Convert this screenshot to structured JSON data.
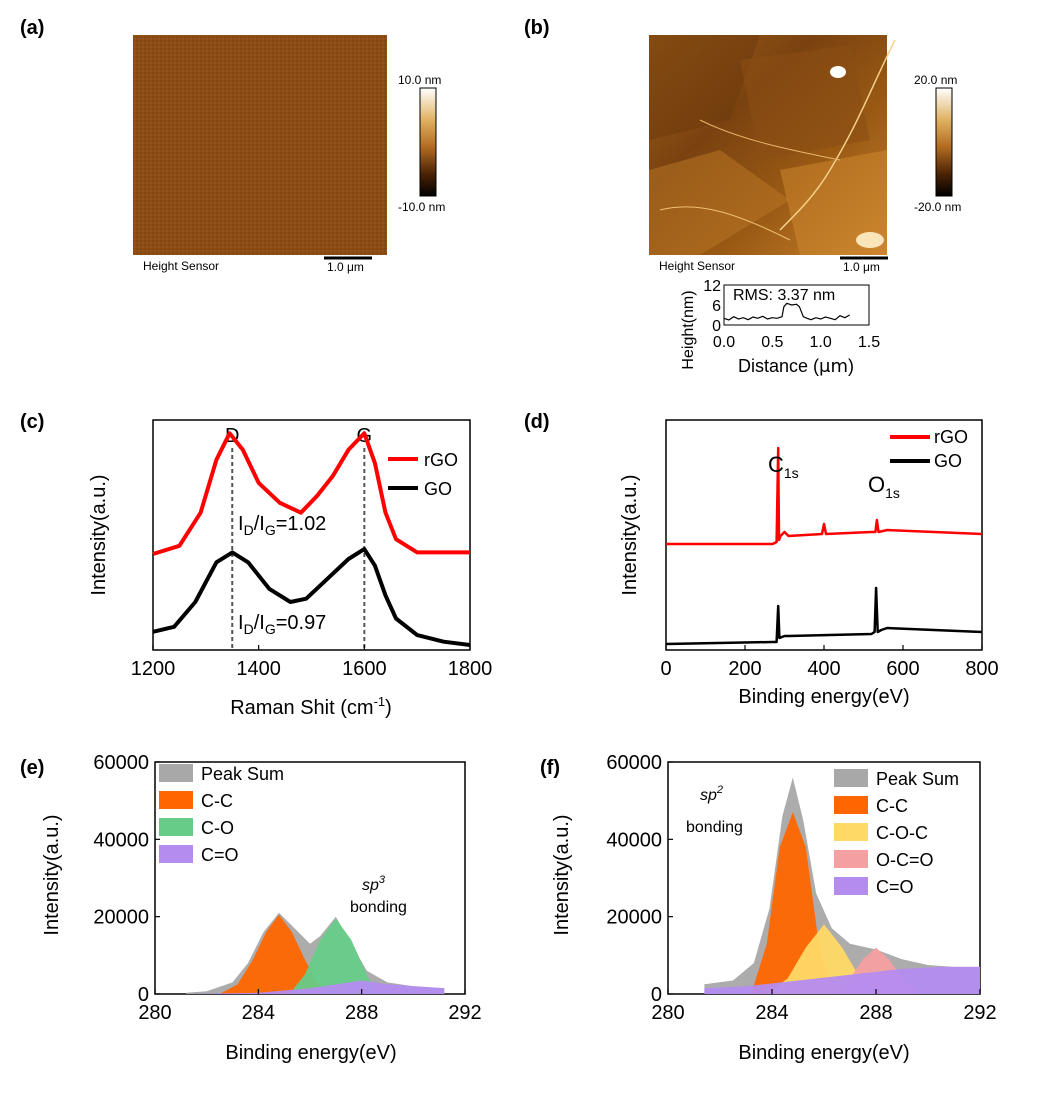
{
  "chart_data": [
    {
      "panel": "(a)",
      "type": "heatmap",
      "image": "afm-height-map-flat",
      "caption_label": "Height Sensor",
      "scale_bar": "1.0 μm",
      "colorbar": {
        "max_label": "10.0 nm",
        "min_label": "-10.0 nm"
      },
      "colors": {
        "base": "#8a4a14",
        "cmap": [
          "#000000",
          "#5a2a06",
          "#b06a20",
          "#e0b060",
          "#ffffff"
        ]
      }
    },
    {
      "panel": "(b)",
      "type": "heatmap",
      "image": "afm-height-map-rgo-flakes",
      "caption_label": "Height Sensor",
      "scale_bar": "1.0 μm",
      "colorbar": {
        "max_label": "20.0 nm",
        "min_label": "-20.0 nm"
      },
      "inset": {
        "type": "line",
        "annotation": "RMS: 3.37 nm",
        "xlabel_main": "Distance (",
        "xlabel_unit": "μm",
        "xlabel_close": ")",
        "ylabel": "Height(nm)",
        "xticks": [
          "0.0",
          "0.5",
          "1.0",
          "1.5"
        ],
        "yticks": [
          "0",
          "6",
          "12"
        ],
        "xlim": [
          0,
          1.5
        ],
        "ylim": [
          0,
          12
        ],
        "x": [
          0,
          0.05,
          0.1,
          0.15,
          0.2,
          0.25,
          0.3,
          0.35,
          0.4,
          0.45,
          0.5,
          0.55,
          0.6,
          0.62,
          0.65,
          0.7,
          0.75,
          0.78,
          0.82,
          0.86,
          0.9,
          0.95,
          1.0,
          1.05,
          1.1,
          1.15,
          1.2,
          1.25,
          1.3
        ],
        "y": [
          2,
          1.5,
          2.5,
          1.8,
          2.2,
          1.6,
          2.4,
          2,
          2.6,
          1.8,
          2.2,
          2,
          2.5,
          5.5,
          6.5,
          6,
          6.2,
          5.5,
          2.5,
          2,
          1.6,
          2.2,
          1.8,
          2.4,
          2,
          1.6,
          2.8,
          2.2,
          3
        ]
      }
    },
    {
      "panel": "(c)",
      "type": "line",
      "xlabel_main": "Raman Shit (cm",
      "xlabel_sup": "-1",
      "xlabel_close": ")",
      "ylabel": "Intensity(a.u.)",
      "xlim": [
        1200,
        1800
      ],
      "xticks": [
        "1200",
        "1400",
        "1600",
        "1800"
      ],
      "peak_labels": [
        "D",
        "G"
      ],
      "peak_positions": [
        1350,
        1600
      ],
      "ratio_rgo": {
        "pre": "I",
        "sub1": "D",
        "mid": "/I",
        "sub2": "G",
        "val": "=1.02"
      },
      "ratio_go": {
        "pre": "I",
        "sub1": "D",
        "mid": "/I",
        "sub2": "G",
        "val": "=0.97"
      },
      "series": [
        {
          "name": "rGO",
          "color": "#ff0000",
          "x": [
            1200,
            1250,
            1290,
            1320,
            1345,
            1370,
            1400,
            1440,
            1480,
            1510,
            1540,
            1570,
            1600,
            1620,
            1640,
            1660,
            1700,
            1750,
            1800
          ],
          "y": [
            0.55,
            0.6,
            0.8,
            1.12,
            1.28,
            1.18,
            0.98,
            0.86,
            0.8,
            0.9,
            1.02,
            1.18,
            1.28,
            1.1,
            0.8,
            0.64,
            0.56,
            0.56,
            0.56
          ]
        },
        {
          "name": "GO",
          "color": "#000000",
          "x": [
            1200,
            1240,
            1280,
            1320,
            1350,
            1380,
            1420,
            1460,
            1490,
            1530,
            1570,
            1600,
            1620,
            1640,
            1660,
            1700,
            1750,
            1800
          ],
          "y": [
            0.08,
            0.11,
            0.26,
            0.5,
            0.56,
            0.5,
            0.34,
            0.26,
            0.28,
            0.4,
            0.52,
            0.58,
            0.48,
            0.3,
            0.16,
            0.06,
            0.02,
            0.0
          ]
        }
      ],
      "legend_position": "top-right"
    },
    {
      "panel": "(d)",
      "type": "line",
      "xlabel": "Binding energy(eV)",
      "ylabel": "Intensity(a.u.)",
      "xlim": [
        0,
        800
      ],
      "xticks": [
        "0",
        "200",
        "400",
        "600",
        "800"
      ],
      "peak_c": {
        "main": "C",
        "sub": "1s"
      },
      "peak_o": {
        "main": "O",
        "sub": "1s"
      },
      "series": [
        {
          "name": "rGO",
          "color": "#ff0000",
          "x": [
            0,
            270,
            280,
            284,
            286,
            290,
            300,
            310,
            395,
            400,
            405,
            520,
            530,
            534,
            538,
            560,
            800
          ],
          "y": [
            0.52,
            0.52,
            0.53,
            1.0,
            0.54,
            0.56,
            0.58,
            0.56,
            0.57,
            0.62,
            0.57,
            0.58,
            0.58,
            0.64,
            0.58,
            0.59,
            0.57
          ]
        },
        {
          "name": "GO",
          "color": "#000000",
          "x": [
            0,
            270,
            280,
            284,
            287,
            300,
            310,
            520,
            528,
            532,
            536,
            545,
            560,
            800
          ],
          "y": [
            0.02,
            0.03,
            0.03,
            0.21,
            0.05,
            0.06,
            0.06,
            0.07,
            0.08,
            0.3,
            0.08,
            0.09,
            0.1,
            0.08
          ]
        }
      ],
      "legend_position": "top-right"
    },
    {
      "panel": "(e)",
      "type": "area",
      "xlabel": "Binding energy(eV)",
      "ylabel": "Intensity(a.u.)",
      "xlim": [
        280,
        292
      ],
      "ylim": [
        0,
        60000
      ],
      "xticks": [
        "280",
        "284",
        "288",
        "292"
      ],
      "yticks": [
        "0",
        "20000",
        "40000",
        "60000"
      ],
      "annotation": {
        "main": "sp",
        "sup": "3",
        "line2": "bonding"
      },
      "legend_position": "top-left",
      "series": [
        {
          "name": "Peak Sum",
          "color": "#a8a8a8",
          "x": [
            281.2,
            282,
            283,
            283.6,
            284.2,
            284.8,
            285.4,
            286,
            286.4,
            287,
            287.6,
            288.2,
            289,
            290,
            291.2
          ],
          "y": [
            300,
            700,
            3000,
            8000,
            16000,
            21000,
            17000,
            13000,
            15000,
            20000,
            13000,
            6000,
            3000,
            2000,
            1500
          ]
        },
        {
          "name": "C-C",
          "color": "#ff6600",
          "x": [
            282.5,
            283.2,
            283.8,
            284.3,
            284.8,
            285.3,
            285.8,
            286.3,
            286.8
          ],
          "y": [
            0,
            2500,
            9000,
            16000,
            20500,
            16000,
            9000,
            2500,
            0
          ]
        },
        {
          "name": "C-O",
          "color": "#66cc88",
          "x": [
            285.2,
            285.8,
            286.4,
            287,
            287.6,
            288.2,
            288.6
          ],
          "y": [
            0,
            5000,
            14000,
            19500,
            14000,
            5000,
            0
          ]
        },
        {
          "name": "C=O",
          "color": "#b48cf0",
          "x": [
            281.2,
            284,
            286,
            288,
            289,
            291.2
          ],
          "y": [
            0,
            300,
            1500,
            3500,
            2500,
            1500
          ]
        }
      ]
    },
    {
      "panel": "(f)",
      "type": "area",
      "xlabel": "Binding energy(eV)",
      "ylabel": "Intensity(a.u.)",
      "xlim": [
        280,
        292
      ],
      "ylim": [
        0,
        60000
      ],
      "xticks": [
        "280",
        "284",
        "288",
        "292"
      ],
      "yticks": [
        "0",
        "20000",
        "40000",
        "60000"
      ],
      "annotation": {
        "main": "sp",
        "sup": "2",
        "line2": "bonding"
      },
      "legend_position": "top-right",
      "series": [
        {
          "name": "Peak Sum",
          "color": "#a8a8a8",
          "x": [
            281.4,
            282.5,
            283.3,
            283.9,
            284.4,
            284.8,
            285.2,
            285.7,
            286.3,
            287,
            288,
            289,
            290,
            291,
            292
          ],
          "y": [
            2500,
            3500,
            8000,
            22000,
            46000,
            56000,
            45000,
            26000,
            17000,
            13000,
            11500,
            9000,
            7500,
            7000,
            7000
          ]
        },
        {
          "name": "C-C",
          "color": "#ff6600",
          "x": [
            283.2,
            283.8,
            284.3,
            284.8,
            285.3,
            285.8,
            286.4
          ],
          "y": [
            0,
            13000,
            38000,
            47000,
            38000,
            13000,
            0
          ]
        },
        {
          "name": "C-O-C",
          "color": "#ffd966",
          "x": [
            283.8,
            284.6,
            285.3,
            286,
            286.7,
            287.4,
            288.2
          ],
          "y": [
            0,
            4000,
            12000,
            18000,
            12000,
            4000,
            0
          ]
        },
        {
          "name": "O-C=O",
          "color": "#f4a0a0",
          "x": [
            286.3,
            287,
            287.5,
            288,
            288.5,
            289,
            289.7
          ],
          "y": [
            0,
            4000,
            9000,
            12000,
            9000,
            4000,
            0
          ]
        },
        {
          "name": "C=O",
          "color": "#b48cf0",
          "x": [
            281.4,
            283,
            285,
            287,
            289,
            290.5,
            292
          ],
          "y": [
            1500,
            2000,
            3500,
            5000,
            6500,
            7000,
            7000
          ]
        }
      ]
    }
  ]
}
